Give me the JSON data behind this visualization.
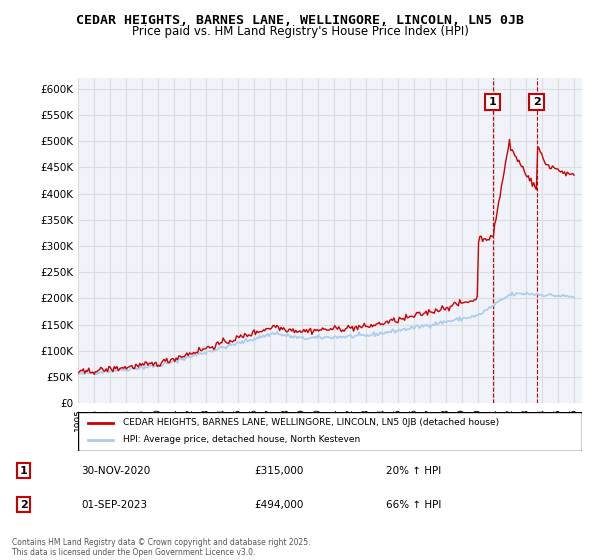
{
  "title": "CEDAR HEIGHTS, BARNES LANE, WELLINGORE, LINCOLN, LN5 0JB",
  "subtitle": "Price paid vs. HM Land Registry's House Price Index (HPI)",
  "ylabel_ticks": [
    "£0",
    "£50K",
    "£100K",
    "£150K",
    "£200K",
    "£250K",
    "£300K",
    "£350K",
    "£400K",
    "£450K",
    "£500K",
    "£550K",
    "£600K"
  ],
  "ytick_vals": [
    0,
    50000,
    100000,
    150000,
    200000,
    250000,
    300000,
    350000,
    400000,
    450000,
    500000,
    550000,
    600000
  ],
  "ylim": [
    0,
    620000
  ],
  "xlim_start": 1995.0,
  "xlim_end": 2026.5,
  "legend_line1": "CEDAR HEIGHTS, BARNES LANE, WELLINGORE, LINCOLN, LN5 0JB (detached house)",
  "legend_line2": "HPI: Average price, detached house, North Kesteven",
  "line_color_property": "#cc0000",
  "line_color_hpi": "#aaccee",
  "annotation1_label": "1",
  "annotation1_date": "30-NOV-2020",
  "annotation1_price": "£315,000",
  "annotation1_hpi": "20% ↑ HPI",
  "annotation2_label": "2",
  "annotation2_date": "01-SEP-2023",
  "annotation2_price": "£494,000",
  "annotation2_hpi": "66% ↑ HPI",
  "footnote": "Contains HM Land Registry data © Crown copyright and database right 2025.\nThis data is licensed under the Open Government Licence v3.0.",
  "background_color": "#ffffff",
  "grid_color": "#dddddd",
  "title_fontsize": 9.5,
  "subtitle_fontsize": 8.5
}
